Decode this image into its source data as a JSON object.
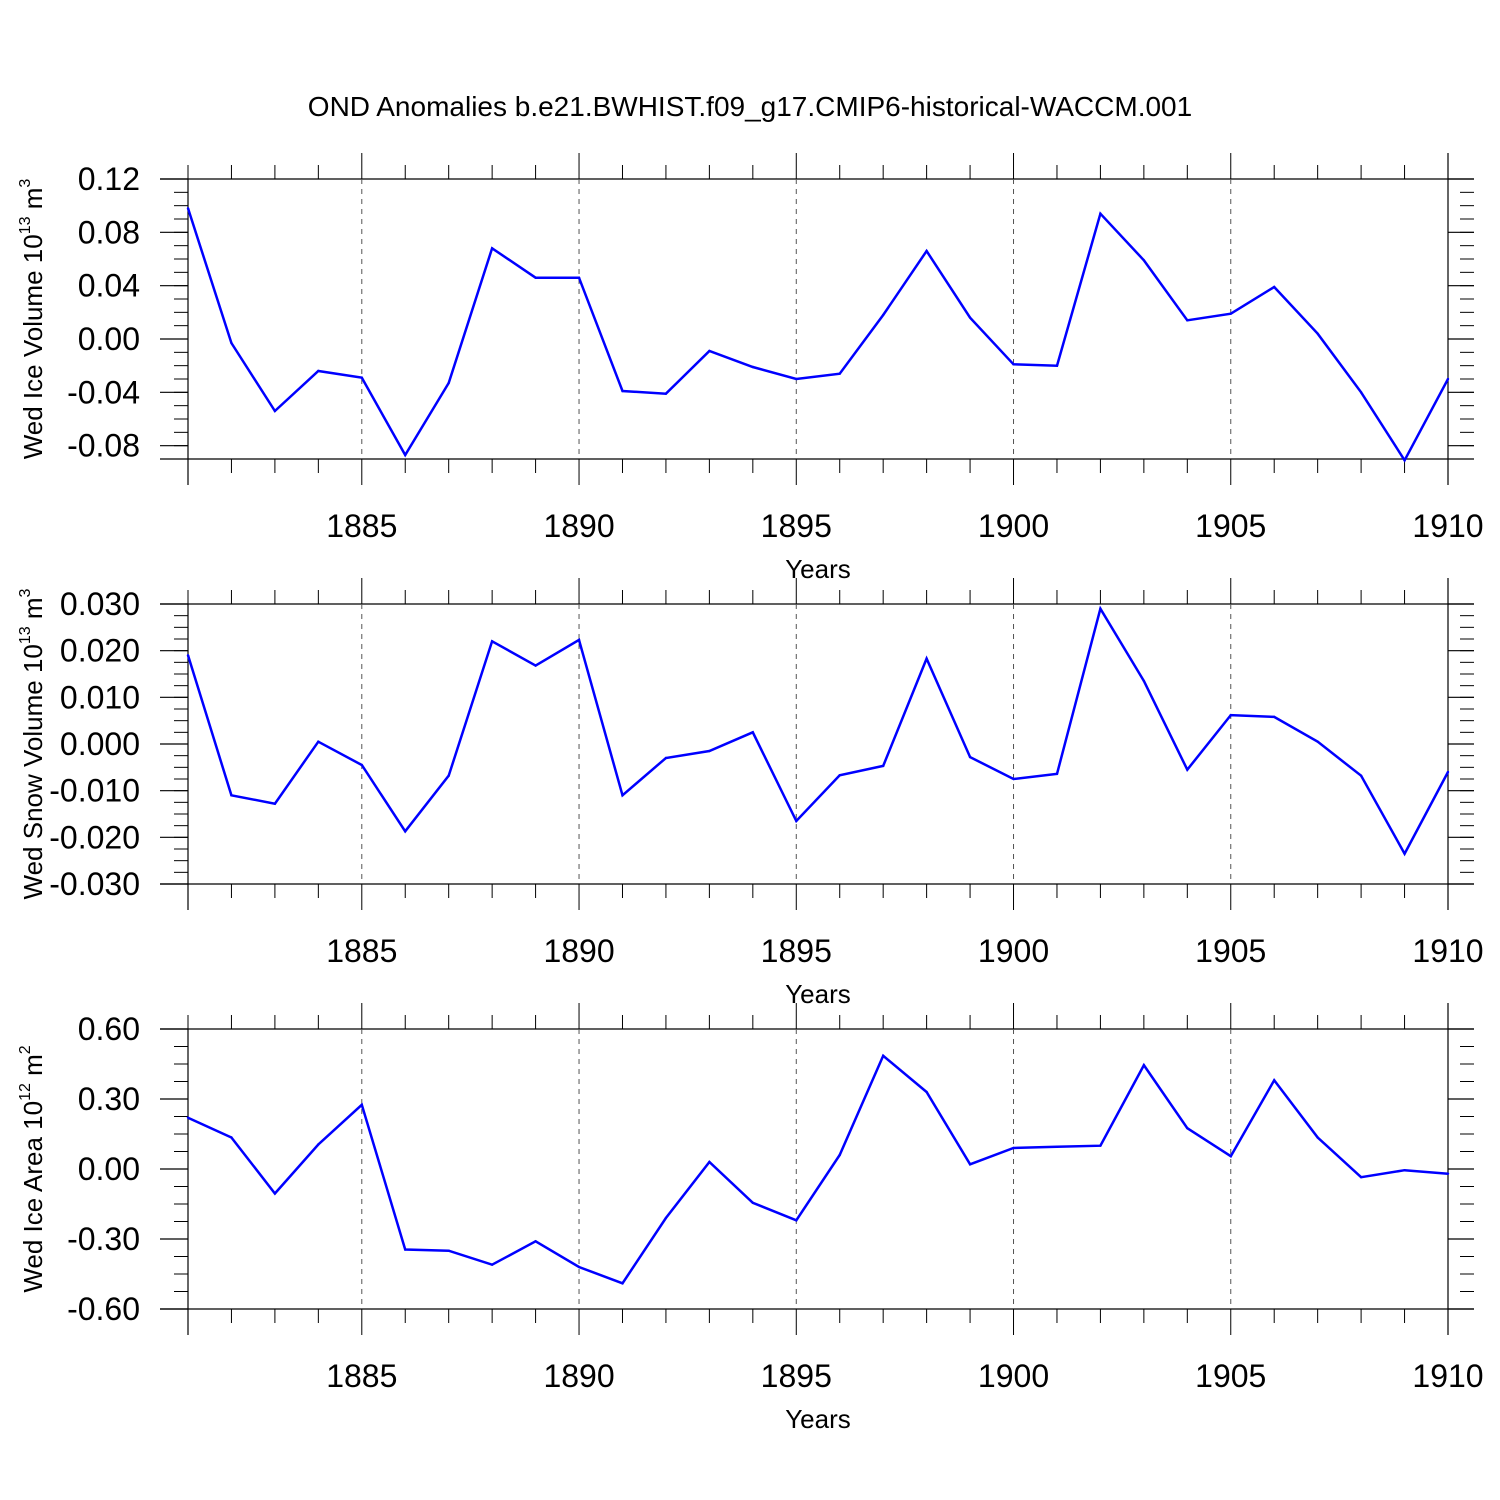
{
  "title": "OND Anomalies b.e21.BWHIST.f09_g17.CMIP6-historical-WACCM.001",
  "colors": {
    "line": "#0000ff",
    "axis": "#000000",
    "grid": "#555555"
  },
  "chart_data": [
    {
      "type": "line",
      "name": "ice-volume",
      "ylabel_text": "Wed Ice Volume 10",
      "ylabel_exp": "13",
      "ylabel_unit": " m",
      "ylabel_unit_exp": "3",
      "xlabel": "Years",
      "xlim": [
        1881,
        1910
      ],
      "ylim": [
        -0.09,
        0.12
      ],
      "xticks": [
        1885,
        1890,
        1895,
        1900,
        1905,
        1910
      ],
      "yticks": [
        "0.12",
        "0.08",
        "0.04",
        "0.00",
        "-0.04",
        "-0.08"
      ],
      "x": [
        1881,
        1882,
        1883,
        1884,
        1885,
        1886,
        1887,
        1888,
        1889,
        1890,
        1891,
        1892,
        1893,
        1894,
        1895,
        1896,
        1897,
        1898,
        1899,
        1900,
        1901,
        1902,
        1903,
        1904,
        1905,
        1906,
        1907,
        1908,
        1909,
        1910
      ],
      "values": [
        0.098,
        -0.003,
        -0.054,
        -0.024,
        -0.029,
        -0.087,
        -0.033,
        0.068,
        0.046,
        0.046,
        -0.039,
        -0.041,
        -0.009,
        -0.021,
        -0.03,
        -0.026,
        0.018,
        0.066,
        0.016,
        -0.019,
        -0.02,
        0.094,
        0.059,
        0.014,
        0.019,
        0.039,
        0.004,
        -0.04,
        -0.091,
        -0.03
      ]
    },
    {
      "type": "line",
      "name": "snow-volume",
      "ylabel_text": "Wed Snow Volume 10",
      "ylabel_exp": "13",
      "ylabel_unit": " m",
      "ylabel_unit_exp": "3",
      "xlabel": "Years",
      "xlim": [
        1881,
        1910
      ],
      "ylim": [
        -0.03,
        0.03
      ],
      "xticks": [
        1885,
        1890,
        1895,
        1900,
        1905,
        1910
      ],
      "yticks": [
        "0.030",
        "0.020",
        "0.010",
        "0.000",
        "-0.010",
        "-0.020",
        "-0.030"
      ],
      "x": [
        1881,
        1882,
        1883,
        1884,
        1885,
        1886,
        1887,
        1888,
        1889,
        1890,
        1891,
        1892,
        1893,
        1894,
        1895,
        1896,
        1897,
        1898,
        1899,
        1900,
        1901,
        1902,
        1903,
        1904,
        1905,
        1906,
        1907,
        1908,
        1909,
        1910
      ],
      "values": [
        0.019,
        -0.011,
        -0.0128,
        0.0005,
        -0.0045,
        -0.0187,
        -0.0068,
        0.022,
        0.0168,
        0.0223,
        -0.011,
        -0.003,
        -0.0015,
        0.0025,
        -0.0165,
        -0.0067,
        -0.0047,
        0.0183,
        -0.0028,
        -0.0075,
        -0.0064,
        0.029,
        0.0135,
        -0.0055,
        0.0062,
        0.0058,
        0.0005,
        -0.0068,
        -0.0235,
        -0.006
      ]
    },
    {
      "type": "line",
      "name": "ice-area",
      "ylabel_text": "Wed Ice Area 10",
      "ylabel_exp": "12",
      "ylabel_unit": " m",
      "ylabel_unit_exp": "2",
      "xlabel": "Years",
      "xlim": [
        1881,
        1910
      ],
      "ylim": [
        -0.6,
        0.6
      ],
      "xticks": [
        1885,
        1890,
        1895,
        1900,
        1905,
        1910
      ],
      "yticks": [
        "0.60",
        "0.30",
        "0.00",
        "-0.30",
        "-0.60"
      ],
      "x": [
        1881,
        1882,
        1883,
        1884,
        1885,
        1886,
        1887,
        1888,
        1889,
        1890,
        1891,
        1892,
        1893,
        1894,
        1895,
        1896,
        1897,
        1898,
        1899,
        1900,
        1901,
        1902,
        1903,
        1904,
        1905,
        1906,
        1907,
        1908,
        1909,
        1910
      ],
      "values": [
        0.22,
        0.135,
        -0.105,
        0.105,
        0.275,
        -0.345,
        -0.35,
        -0.41,
        -0.31,
        -0.42,
        -0.49,
        -0.21,
        0.03,
        -0.145,
        -0.22,
        0.06,
        0.485,
        0.33,
        0.02,
        0.09,
        0.095,
        0.1,
        0.445,
        0.175,
        0.055,
        0.38,
        0.135,
        -0.035,
        -0.005,
        -0.02
      ]
    }
  ]
}
